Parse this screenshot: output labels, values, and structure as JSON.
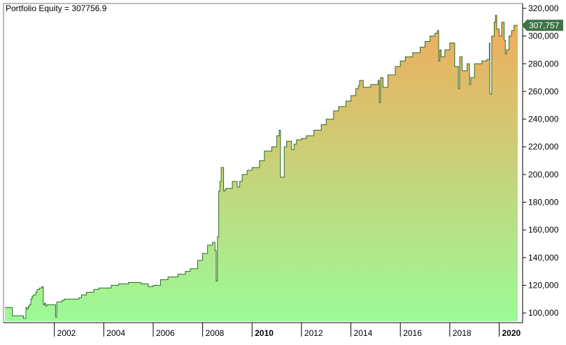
{
  "title_label": "Portfolio Equity",
  "title_value": "307756.9",
  "current_value_label": "307,757",
  "colors": {
    "area_top": "#f2aa5c",
    "area_bottom": "#9cfa97",
    "line": "#2d6b2d",
    "marker_fill": "#3f7246",
    "marker_text": "#ffffff",
    "axis": "#000000",
    "plot_border": "#7a7a7a"
  },
  "chart_data": {
    "type": "area",
    "xlabel": "",
    "ylabel": "",
    "ylim": [
      94000,
      322000
    ],
    "xlim": [
      2000.0,
      2020.75
    ],
    "y_ticks": [
      100000,
      120000,
      140000,
      160000,
      180000,
      200000,
      220000,
      240000,
      260000,
      280000,
      300000,
      320000
    ],
    "y_tick_labels": [
      "100,000",
      "120,000",
      "140,000",
      "160,000",
      "180,000",
      "200,000",
      "220,000",
      "240,000",
      "260,000",
      "280,000",
      "300,000",
      "320,000"
    ],
    "x_ticks": [
      2002,
      2004,
      2006,
      2008,
      2010,
      2012,
      2014,
      2016,
      2018,
      2020
    ],
    "x_tick_labels": [
      "2002",
      "2004",
      "2006",
      "2008",
      "2010",
      "2012",
      "2014",
      "2016",
      "2018",
      "2020"
    ],
    "x_tick_bold": [
      false,
      false,
      false,
      false,
      true,
      false,
      false,
      false,
      false,
      true
    ],
    "grid": false,
    "series": [
      {
        "x": [
          2000.0,
          2000.3,
          2000.3,
          2000.75,
          2000.85,
          2000.9,
          2000.95,
          2001.0,
          2001.05,
          2001.1,
          2001.15,
          2001.25,
          2001.3,
          2001.4,
          2001.5,
          2001.55,
          2001.6,
          2001.65,
          2001.7,
          2002.0,
          2002.05,
          2002.1,
          2002.15,
          2002.3,
          2002.4,
          2002.5,
          2003.0,
          2003.1,
          2003.3,
          2003.6,
          2003.8,
          2004.0,
          2004.3,
          2004.6,
          2005.0,
          2005.5,
          2005.8,
          2006.0,
          2006.3,
          2006.6,
          2007.0,
          2007.3,
          2007.5,
          2007.8,
          2008.0,
          2008.2,
          2008.4,
          2008.5,
          2008.55,
          2008.6,
          2008.65,
          2008.7,
          2008.75,
          2008.85,
          2008.9,
          2008.95,
          2009.0,
          2009.2,
          2009.4,
          2009.5,
          2009.6,
          2009.8,
          2010.0,
          2010.3,
          2010.5,
          2010.8,
          2011.0,
          2011.1,
          2011.15,
          2011.3,
          2011.4,
          2011.6,
          2011.7,
          2011.8,
          2012.0,
          2012.2,
          2012.5,
          2012.8,
          2013.0,
          2013.3,
          2013.5,
          2013.8,
          2014.0,
          2014.2,
          2014.3,
          2014.35,
          2014.5,
          2014.8,
          2015.0,
          2015.1,
          2015.15,
          2015.2,
          2015.3,
          2015.5,
          2015.8,
          2016.0,
          2016.2,
          2016.5,
          2016.8,
          2017.0,
          2017.2,
          2017.4,
          2017.5,
          2017.55,
          2017.6,
          2017.65,
          2017.8,
          2018.0,
          2018.2,
          2018.3,
          2018.35,
          2018.4,
          2018.5,
          2018.7,
          2018.8,
          2018.85,
          2019.0,
          2019.3,
          2019.5,
          2019.6,
          2019.62,
          2019.7,
          2019.8,
          2019.85,
          2019.9,
          2020.0,
          2020.1,
          2020.2,
          2020.25,
          2020.3,
          2020.4,
          2020.5,
          2020.6,
          2020.75
        ],
        "values": [
          104000,
          98000,
          98000,
          96000,
          104000,
          103000,
          105000,
          106000,
          110000,
          112000,
          113000,
          115000,
          117000,
          118000,
          119000,
          106000,
          107000,
          105000,
          106000,
          106000,
          97000,
          108000,
          108000,
          109000,
          110000,
          110000,
          111000,
          113000,
          115000,
          117000,
          118000,
          118000,
          120000,
          121000,
          122000,
          121000,
          119000,
          120000,
          124000,
          126000,
          128000,
          130000,
          132000,
          138000,
          143000,
          149000,
          151000,
          145000,
          123000,
          155000,
          188000,
          195000,
          205000,
          188000,
          189000,
          190000,
          190000,
          195000,
          191000,
          195000,
          200000,
          203000,
          205000,
          210000,
          217000,
          220000,
          228000,
          232000,
          198000,
          220000,
          224000,
          218000,
          222000,
          225000,
          226000,
          228000,
          232000,
          236000,
          240000,
          246000,
          249000,
          253000,
          257000,
          262000,
          264000,
          268000,
          263000,
          265000,
          265000,
          268000,
          252000,
          270000,
          263000,
          272000,
          278000,
          282000,
          285000,
          288000,
          292000,
          296000,
          300000,
          302000,
          304000,
          282000,
          290000,
          285000,
          290000,
          295000,
          278000,
          278000,
          262000,
          285000,
          275000,
          280000,
          265000,
          270000,
          280000,
          282000,
          283000,
          295000,
          258000,
          300000,
          310000,
          315000,
          305000,
          300000,
          310000,
          297000,
          287000,
          290000,
          300000,
          304000,
          307757,
          307757
        ]
      }
    ]
  }
}
